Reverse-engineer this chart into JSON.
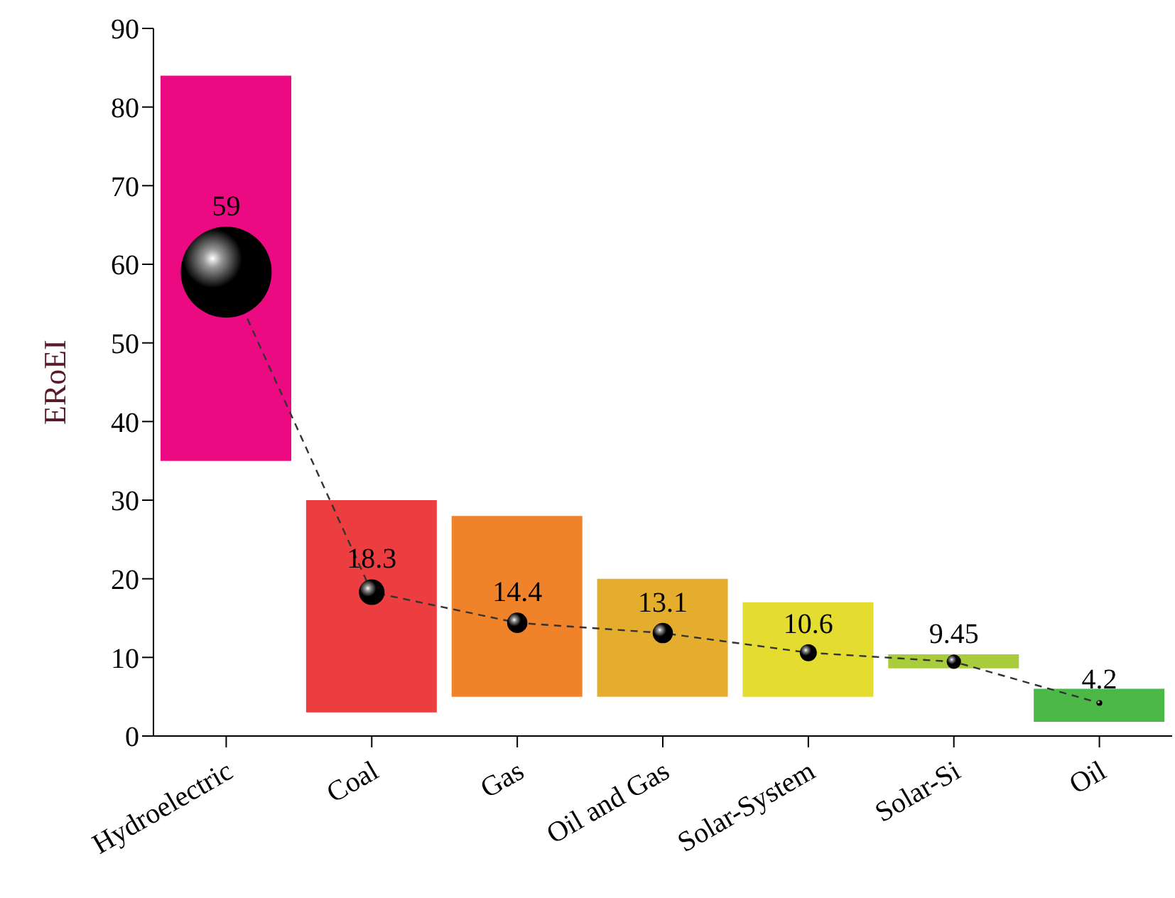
{
  "chart_data": {
    "type": "bar",
    "ylabel": "ERoEI",
    "categories": [
      "Hydroelectric",
      "Coal",
      "Gas",
      "Oil and Gas",
      "Solar-System",
      "Solar-Si",
      "Oil"
    ],
    "series": [
      {
        "colors": [
          "#ec0a82",
          "#ec3e41",
          "#f0822a",
          "#e4ad2d",
          "#e4dc30",
          "#a8cc3c",
          "#4cb848"
        ],
        "base": [
          35,
          3,
          5,
          5,
          5,
          8.6,
          1.8
        ],
        "values": [
          49,
          27,
          23,
          15,
          12,
          1.8,
          4.2
        ]
      },
      {
        "type": "bubble",
        "color": "#000000",
        "values": [
          59,
          18.3,
          14.4,
          13.1,
          10.6,
          9.45,
          4.2
        ],
        "sizes": [
          1,
          0.08,
          0.05,
          0.05,
          0.035,
          0.025,
          0.004
        ],
        "value_labels": [
          "59",
          "18.3",
          "14.4",
          "13.1",
          "10.6",
          "9.45",
          "4.2"
        ],
        "line_style": "dashed"
      }
    ],
    "ylim": [
      0,
      90
    ],
    "yticks": [
      0,
      10,
      20,
      30,
      40,
      50,
      60,
      70,
      80,
      90
    ],
    "grid": false,
    "legend": false
  }
}
